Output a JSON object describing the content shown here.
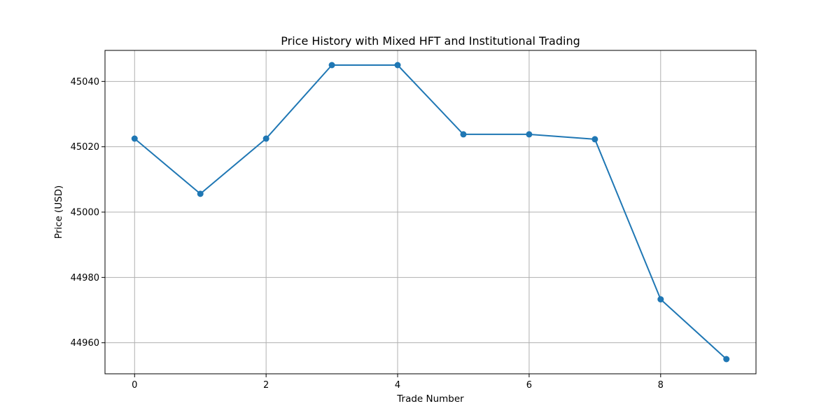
{
  "chart_data": {
    "type": "line",
    "title": "Price History with Mixed HFT and Institutional Trading",
    "xlabel": "Trade Number",
    "ylabel": "Price (USD)",
    "x": [
      0,
      1,
      2,
      3,
      4,
      5,
      6,
      7,
      8,
      9
    ],
    "series": [
      {
        "values": [
          45022.5,
          45005.6,
          45022.5,
          45045.0,
          45045.0,
          45023.8,
          45023.8,
          45022.3,
          44973.3,
          44955.0
        ]
      }
    ],
    "xlim": [
      -0.45,
      9.45
    ],
    "ylim": [
      44950.5,
      45049.5
    ],
    "xticks": [
      0,
      2,
      4,
      6,
      8
    ],
    "yticks": [
      44960,
      44980,
      45000,
      45020,
      45040
    ],
    "grid": true,
    "line_color": "#1f77b4",
    "grid_color": "#b0b0b0"
  }
}
